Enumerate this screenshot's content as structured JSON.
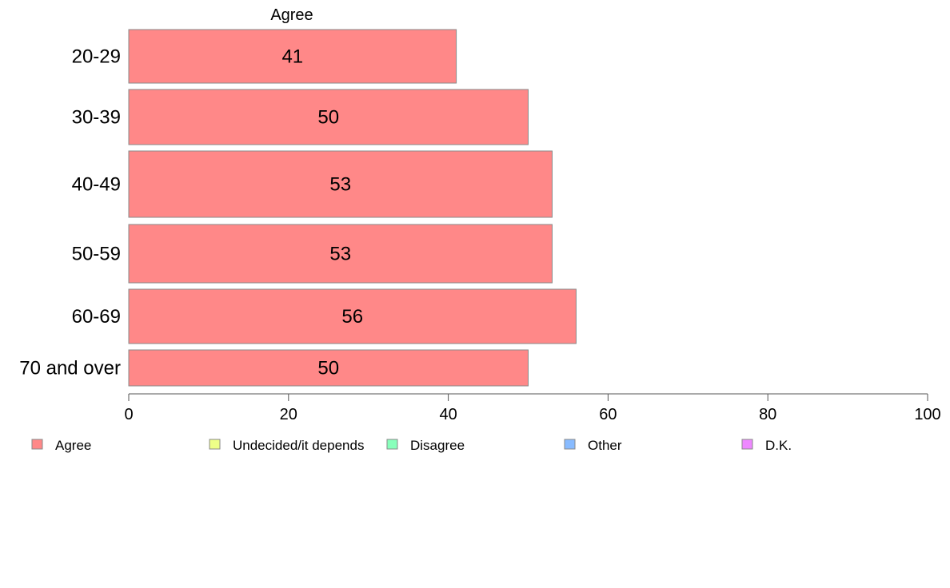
{
  "chart_data": {
    "type": "bar",
    "orientation": "horizontal",
    "stacked": true,
    "column_label": "Agree",
    "categories": [
      "20-29",
      "30-39",
      "40-49",
      "50-59",
      "60-69",
      "70 and over"
    ],
    "series": [
      {
        "name": "Agree",
        "color": "#ff8888",
        "values": [
          41,
          50,
          53,
          53,
          56,
          50
        ]
      }
    ],
    "legend": [
      {
        "name": "Agree",
        "color": "#ff8888"
      },
      {
        "name": "Undecided/it depends",
        "color": "#eeff88"
      },
      {
        "name": "Disagree",
        "color": "#88ffbb"
      },
      {
        "name": "Other",
        "color": "#88bbff"
      },
      {
        "name": "D.K.",
        "color": "#ee88ff"
      }
    ],
    "xlim": [
      0,
      100
    ],
    "xticks": [
      0,
      20,
      40,
      60,
      80,
      100
    ],
    "grid": false,
    "legend_position": "bottom"
  }
}
